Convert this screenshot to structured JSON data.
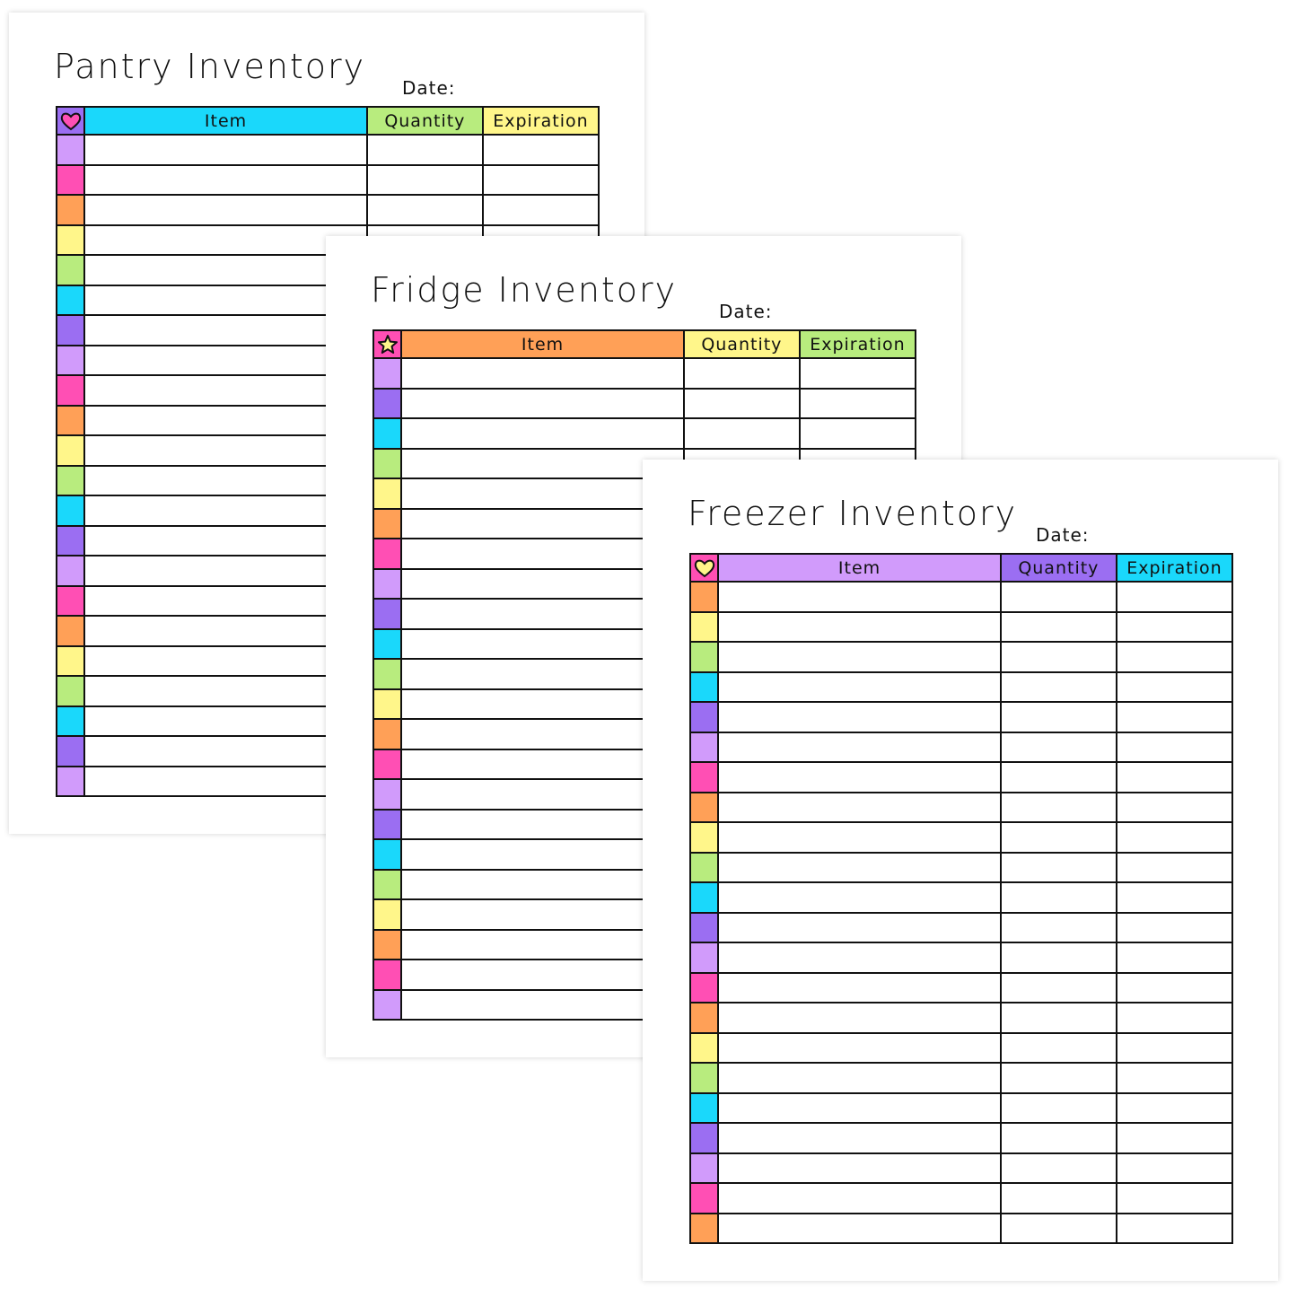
{
  "palette": {
    "lavender": "#d19bfb",
    "pink": "#ff4fb4",
    "orange": "#ffa057",
    "yellow": "#fff68a",
    "green": "#b8ec7e",
    "cyan": "#1ad8fb",
    "purple": "#9b6ef2"
  },
  "pages": [
    {
      "title": "Pantry Inventory",
      "date_label": "Date:",
      "icon": "heart-icon",
      "icon_color": "#ff4fb4",
      "header_colors": [
        "#9b6ef2",
        "#1ad8fb",
        "#b8ec7e",
        "#fff68a"
      ],
      "columns": [
        "Item",
        "Quantity",
        "Expiration"
      ],
      "row_colors": [
        "lavender",
        "pink",
        "orange",
        "yellow",
        "green",
        "cyan",
        "purple",
        "lavender",
        "pink",
        "orange",
        "yellow",
        "green",
        "cyan",
        "purple",
        "lavender",
        "pink",
        "orange",
        "yellow",
        "green",
        "cyan",
        "purple",
        "lavender"
      ]
    },
    {
      "title": "Fridge Inventory",
      "date_label": "Date:",
      "icon": "star-icon",
      "icon_color": "#fff68a",
      "header_colors": [
        "#ff4fb4",
        "#ffa057",
        "#fff68a",
        "#b8ec7e"
      ],
      "columns": [
        "Item",
        "Quantity",
        "Expiration"
      ],
      "row_colors": [
        "lavender",
        "purple",
        "cyan",
        "green",
        "yellow",
        "orange",
        "pink",
        "lavender",
        "purple",
        "cyan",
        "green",
        "yellow",
        "orange",
        "pink",
        "lavender",
        "purple",
        "cyan",
        "green",
        "yellow",
        "orange",
        "pink",
        "lavender"
      ]
    },
    {
      "title": "Freezer Inventory",
      "date_label": "Date:",
      "icon": "heart-icon",
      "icon_color": "#fff68a",
      "header_colors": [
        "#ff4fb4",
        "#d19bfb",
        "#9b6ef2",
        "#1ad8fb"
      ],
      "columns": [
        "Item",
        "Quantity",
        "Expiration"
      ],
      "row_colors": [
        "orange",
        "yellow",
        "green",
        "cyan",
        "purple",
        "lavender",
        "pink",
        "orange",
        "yellow",
        "green",
        "cyan",
        "purple",
        "lavender",
        "pink",
        "orange",
        "yellow",
        "green",
        "cyan",
        "purple",
        "lavender",
        "pink",
        "orange"
      ]
    }
  ]
}
